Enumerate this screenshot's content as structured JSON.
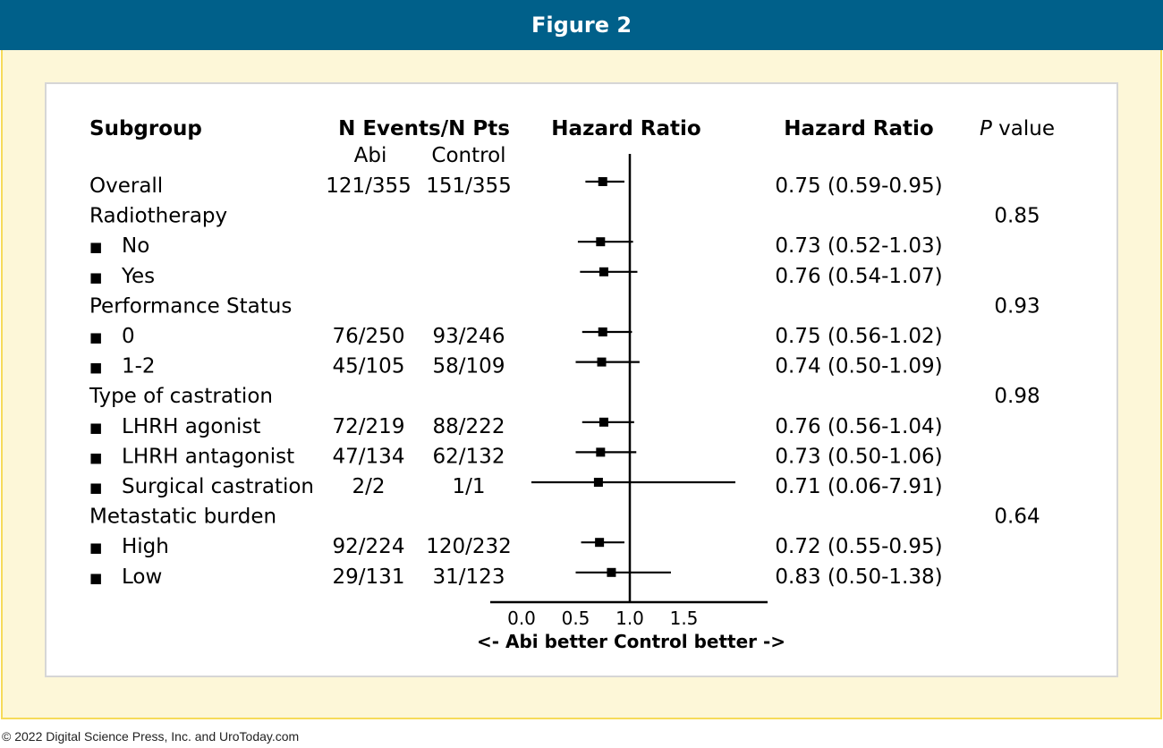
{
  "header": {
    "title": "Figure 2"
  },
  "footer": {
    "copyright": "© 2022 Digital Science Press, Inc. and UroToday.com"
  },
  "table": {
    "col_subgroup": "Subgroup",
    "col_events": "N Events/N Pts",
    "col_abi": "Abi",
    "col_control": "Control",
    "col_hr_plot": "Hazard Ratio",
    "col_hr_text": "Hazard Ratio",
    "col_p_italic": "P",
    "col_p_rest": " value",
    "bullet": "■"
  },
  "chart_data": {
    "type": "forest",
    "title": "",
    "xlabel_left": "<- Abi better",
    "xlabel_right": "Control better ->",
    "reference_line": 1.0,
    "x_ticks": [
      "0.0",
      "0.5",
      "1.0",
      "1.5"
    ],
    "x_range": [
      0.0,
      1.5
    ],
    "rows": [
      {
        "label": "Overall",
        "indent": false,
        "abi": "121/355",
        "control": "151/355",
        "hr": 0.75,
        "lo": 0.59,
        "hi": 0.95,
        "hr_text": "0.75 (0.59-0.95)",
        "p": ""
      },
      {
        "label": "Radiotherapy",
        "indent": false,
        "abi": "",
        "control": "",
        "hr": null,
        "lo": null,
        "hi": null,
        "hr_text": "",
        "p": "0.85"
      },
      {
        "label": "No",
        "indent": true,
        "abi": "",
        "control": "",
        "hr": 0.73,
        "lo": 0.52,
        "hi": 1.03,
        "hr_text": "0.73 (0.52-1.03)",
        "p": ""
      },
      {
        "label": "Yes",
        "indent": true,
        "abi": "",
        "control": "",
        "hr": 0.76,
        "lo": 0.54,
        "hi": 1.07,
        "hr_text": "0.76 (0.54-1.07)",
        "p": ""
      },
      {
        "label": "Performance Status",
        "indent": false,
        "abi": "",
        "control": "",
        "hr": null,
        "lo": null,
        "hi": null,
        "hr_text": "",
        "p": "0.93"
      },
      {
        "label": "0",
        "indent": true,
        "abi": "76/250",
        "control": "93/246",
        "hr": 0.75,
        "lo": 0.56,
        "hi": 1.02,
        "hr_text": "0.75 (0.56-1.02)",
        "p": ""
      },
      {
        "label": "1-2",
        "indent": true,
        "abi": "45/105",
        "control": "58/109",
        "hr": 0.74,
        "lo": 0.5,
        "hi": 1.09,
        "hr_text": "0.74 (0.50-1.09)",
        "p": ""
      },
      {
        "label": "Type of castration",
        "indent": false,
        "abi": "",
        "control": "",
        "hr": null,
        "lo": null,
        "hi": null,
        "hr_text": "",
        "p": "0.98"
      },
      {
        "label": "LHRH agonist",
        "indent": true,
        "abi": "72/219",
        "control": "88/222",
        "hr": 0.76,
        "lo": 0.56,
        "hi": 1.04,
        "hr_text": "0.76 (0.56-1.04)",
        "p": ""
      },
      {
        "label": "LHRH antagonist",
        "indent": true,
        "abi": "47/134",
        "control": "62/132",
        "hr": 0.73,
        "lo": 0.5,
        "hi": 1.06,
        "hr_text": "0.73 (0.50-1.06)",
        "p": ""
      },
      {
        "label": "Surgical castration",
        "indent": true,
        "abi": "2/2",
        "control": "1/1",
        "hr": 0.71,
        "lo": 0.06,
        "hi": 7.91,
        "hr_text": "0.71 (0.06-7.91)",
        "p": ""
      },
      {
        "label": "Metastatic burden",
        "indent": false,
        "abi": "",
        "control": "",
        "hr": null,
        "lo": null,
        "hi": null,
        "hr_text": "",
        "p": "0.64"
      },
      {
        "label": "High",
        "indent": true,
        "abi": "92/224",
        "control": "120/232",
        "hr": 0.72,
        "lo": 0.55,
        "hi": 0.95,
        "hr_text": "0.72 (0.55-0.95)",
        "p": ""
      },
      {
        "label": "Low",
        "indent": true,
        "abi": "29/131",
        "control": "31/123",
        "hr": 0.83,
        "lo": 0.5,
        "hi": 1.38,
        "hr_text": "0.83 (0.50-1.38)",
        "p": ""
      }
    ]
  }
}
